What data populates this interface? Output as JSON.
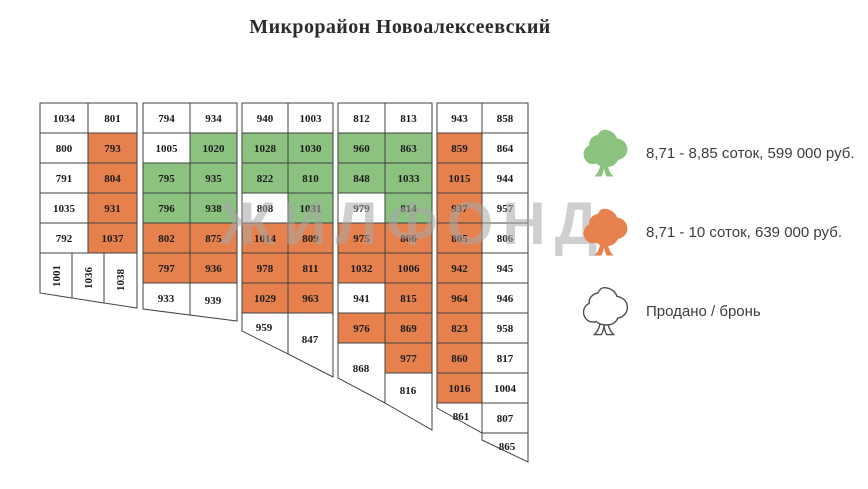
{
  "title": "Микрорайон Новоалексеевский",
  "watermark": "ЖИЛФОНД",
  "colors": {
    "green": "#8CC27F",
    "orange": "#E6814D",
    "sold": "#FFFFFF",
    "border": "#424242",
    "plot_text": "#1C1C1C",
    "watermark": "#A8A8A8"
  },
  "legend": {
    "items": [
      {
        "icon": "green-tree-icon",
        "color_key": "green",
        "label": "8,71 - 8,85 соток, 599 000 руб."
      },
      {
        "icon": "orange-tree-icon",
        "color_key": "orange",
        "label": "8,71 - 10 соток, 639 000 руб."
      },
      {
        "icon": "outline-tree-icon",
        "color_key": "sold",
        "label": "Продано / бронь"
      }
    ]
  },
  "map": {
    "status_legend": {
      "green": "8,71 - 8,85 соток, 599 000 руб.",
      "orange": "8,71 - 10 соток, 639 000 руб.",
      "sold": "Продано / бронь"
    },
    "blocks": [
      {
        "name": "block-1",
        "cells": [
          {
            "n": "1034",
            "s": "sold",
            "r": 0,
            "c": 0
          },
          {
            "n": "801",
            "s": "sold",
            "r": 0,
            "c": 1
          },
          {
            "n": "800",
            "s": "sold",
            "r": 1,
            "c": 0
          },
          {
            "n": "793",
            "s": "orange",
            "r": 1,
            "c": 1
          },
          {
            "n": "791",
            "s": "sold",
            "r": 2,
            "c": 0
          },
          {
            "n": "804",
            "s": "orange",
            "r": 2,
            "c": 1
          },
          {
            "n": "1035",
            "s": "sold",
            "r": 3,
            "c": 0
          },
          {
            "n": "931",
            "s": "orange",
            "r": 3,
            "c": 1
          },
          {
            "n": "792",
            "s": "sold",
            "r": 4,
            "c": 0
          },
          {
            "n": "1037",
            "s": "orange",
            "r": 4,
            "c": 1
          },
          {
            "n": "1001",
            "s": "sold"
          },
          {
            "n": "1036",
            "s": "sold"
          },
          {
            "n": "1038",
            "s": "sold"
          }
        ]
      },
      {
        "name": "block-2",
        "cells": [
          {
            "n": "794",
            "s": "sold",
            "r": 0,
            "c": 0
          },
          {
            "n": "934",
            "s": "sold",
            "r": 0,
            "c": 1
          },
          {
            "n": "1005",
            "s": "sold",
            "r": 1,
            "c": 0
          },
          {
            "n": "1020",
            "s": "green",
            "r": 1,
            "c": 1
          },
          {
            "n": "795",
            "s": "green",
            "r": 2,
            "c": 0
          },
          {
            "n": "935",
            "s": "green",
            "r": 2,
            "c": 1
          },
          {
            "n": "796",
            "s": "green",
            "r": 3,
            "c": 0
          },
          {
            "n": "938",
            "s": "green",
            "r": 3,
            "c": 1
          },
          {
            "n": "802",
            "s": "orange",
            "r": 4,
            "c": 0
          },
          {
            "n": "875",
            "s": "orange",
            "r": 4,
            "c": 1
          },
          {
            "n": "797",
            "s": "orange",
            "r": 5,
            "c": 0
          },
          {
            "n": "936",
            "s": "orange",
            "r": 5,
            "c": 1
          },
          {
            "n": "933",
            "s": "sold"
          },
          {
            "n": "939",
            "s": "sold"
          }
        ]
      },
      {
        "name": "block-3",
        "cells": [
          {
            "n": "940",
            "s": "sold",
            "r": 0,
            "c": 0
          },
          {
            "n": "1003",
            "s": "sold",
            "r": 0,
            "c": 1
          },
          {
            "n": "1028",
            "s": "green",
            "r": 1,
            "c": 0
          },
          {
            "n": "1030",
            "s": "green",
            "r": 1,
            "c": 1
          },
          {
            "n": "822",
            "s": "green",
            "r": 2,
            "c": 0
          },
          {
            "n": "810",
            "s": "green",
            "r": 2,
            "c": 1
          },
          {
            "n": "808",
            "s": "sold",
            "r": 3,
            "c": 0
          },
          {
            "n": "1031",
            "s": "green",
            "r": 3,
            "c": 1
          },
          {
            "n": "1014",
            "s": "orange",
            "r": 4,
            "c": 0
          },
          {
            "n": "809",
            "s": "orange",
            "r": 4,
            "c": 1
          },
          {
            "n": "978",
            "s": "orange",
            "r": 5,
            "c": 0
          },
          {
            "n": "811",
            "s": "orange",
            "r": 5,
            "c": 1
          },
          {
            "n": "1029",
            "s": "orange",
            "r": 6,
            "c": 0
          },
          {
            "n": "963",
            "s": "orange",
            "r": 6,
            "c": 1
          },
          {
            "n": "959",
            "s": "sold"
          },
          {
            "n": "847",
            "s": "sold"
          }
        ]
      },
      {
        "name": "block-4",
        "cells": [
          {
            "n": "812",
            "s": "sold",
            "r": 0,
            "c": 0
          },
          {
            "n": "813",
            "s": "sold",
            "r": 0,
            "c": 1
          },
          {
            "n": "960",
            "s": "green",
            "r": 1,
            "c": 0
          },
          {
            "n": "863",
            "s": "green",
            "r": 1,
            "c": 1
          },
          {
            "n": "848",
            "s": "green",
            "r": 2,
            "c": 0
          },
          {
            "n": "1033",
            "s": "green",
            "r": 2,
            "c": 1
          },
          {
            "n": "979",
            "s": "sold",
            "r": 3,
            "c": 0
          },
          {
            "n": "814",
            "s": "green",
            "r": 3,
            "c": 1
          },
          {
            "n": "975",
            "s": "orange",
            "r": 4,
            "c": 0
          },
          {
            "n": "866",
            "s": "orange",
            "r": 4,
            "c": 1
          },
          {
            "n": "1032",
            "s": "orange",
            "r": 5,
            "c": 0
          },
          {
            "n": "1006",
            "s": "orange",
            "r": 5,
            "c": 1
          },
          {
            "n": "941",
            "s": "sold",
            "r": 6,
            "c": 0
          },
          {
            "n": "815",
            "s": "orange",
            "r": 6,
            "c": 1
          },
          {
            "n": "976",
            "s": "orange",
            "r": 7,
            "c": 0
          },
          {
            "n": "869",
            "s": "orange",
            "r": 7,
            "c": 1
          },
          {
            "n": "868",
            "s": "sold"
          },
          {
            "n": "977",
            "s": "orange",
            "r": 8,
            "c": 1
          },
          {
            "n": "816",
            "s": "sold"
          }
        ]
      },
      {
        "name": "block-5",
        "cells": [
          {
            "n": "943",
            "s": "sold",
            "r": 0,
            "c": 0
          },
          {
            "n": "858",
            "s": "sold",
            "r": 0,
            "c": 1
          },
          {
            "n": "859",
            "s": "orange",
            "r": 1,
            "c": 0
          },
          {
            "n": "864",
            "s": "sold",
            "r": 1,
            "c": 1
          },
          {
            "n": "1015",
            "s": "orange",
            "r": 2,
            "c": 0
          },
          {
            "n": "944",
            "s": "sold",
            "r": 2,
            "c": 1
          },
          {
            "n": "937",
            "s": "orange",
            "r": 3,
            "c": 0
          },
          {
            "n": "957",
            "s": "sold",
            "r": 3,
            "c": 1
          },
          {
            "n": "805",
            "s": "orange",
            "r": 4,
            "c": 0
          },
          {
            "n": "806",
            "s": "sold",
            "r": 4,
            "c": 1
          },
          {
            "n": "942",
            "s": "orange",
            "r": 5,
            "c": 0
          },
          {
            "n": "945",
            "s": "sold",
            "r": 5,
            "c": 1
          },
          {
            "n": "964",
            "s": "orange",
            "r": 6,
            "c": 0
          },
          {
            "n": "946",
            "s": "sold",
            "r": 6,
            "c": 1
          },
          {
            "n": "823",
            "s": "orange",
            "r": 7,
            "c": 0
          },
          {
            "n": "958",
            "s": "sold",
            "r": 7,
            "c": 1
          },
          {
            "n": "860",
            "s": "orange",
            "r": 8,
            "c": 0
          },
          {
            "n": "817",
            "s": "sold",
            "r": 8,
            "c": 1
          },
          {
            "n": "1016",
            "s": "orange",
            "r": 9,
            "c": 0
          },
          {
            "n": "1004",
            "s": "sold",
            "r": 9,
            "c": 1
          },
          {
            "n": "861",
            "s": "sold"
          },
          {
            "n": "807",
            "s": "sold",
            "r": 10,
            "c": 1
          },
          {
            "n": "865",
            "s": "sold"
          }
        ]
      }
    ]
  }
}
